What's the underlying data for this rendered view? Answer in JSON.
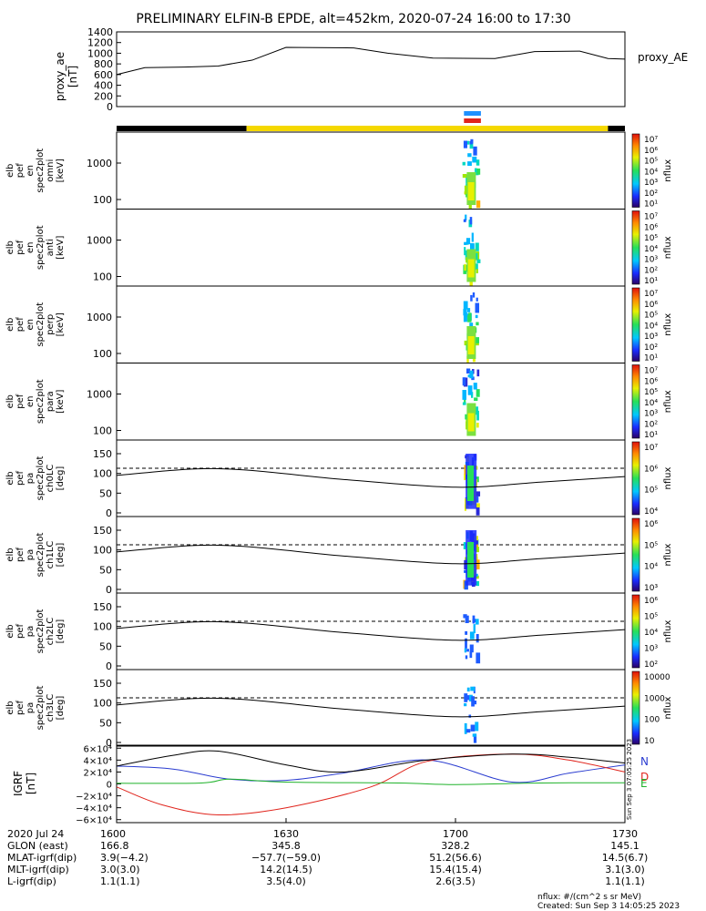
{
  "title": "PRELIMINARY ELFIN-B EPDE, alt=452km, 2020-07-24 16:00 to 17:30",
  "chart_data": {
    "type": "multi-panel time series",
    "time_range": [
      "16:00",
      "17:30"
    ],
    "ae_panel": {
      "ylabel": [
        "proxy_ae",
        "[nT]"
      ],
      "legend": "proxy_AE",
      "yticks": [
        "1400",
        "1200",
        "1000",
        "800",
        "600",
        "400",
        "200",
        "0"
      ],
      "ylim": [
        0,
        1400
      ],
      "series": [
        {
          "t": 0,
          "v": 600
        },
        {
          "t": 5,
          "v": 730
        },
        {
          "t": 12,
          "v": 740
        },
        {
          "t": 18,
          "v": 760
        },
        {
          "t": 24,
          "v": 870
        },
        {
          "t": 30,
          "v": 1110
        },
        {
          "t": 42,
          "v": 1100
        },
        {
          "t": 48,
          "v": 1000
        },
        {
          "t": 56,
          "v": 910
        },
        {
          "t": 67,
          "v": 900
        },
        {
          "t": 74,
          "v": 1030
        },
        {
          "t": 82,
          "v": 1040
        },
        {
          "t": 87,
          "v": 900
        },
        {
          "t": 90,
          "v": 890
        }
      ]
    },
    "spectra_panels": [
      {
        "labels": [
          "elb",
          "pef",
          "en",
          "spec2plot",
          "omni",
          "[keV]"
        ],
        "yticks": [
          "1000",
          "100"
        ],
        "cbar_ticks": [
          "10⁷",
          "10⁶",
          "10⁵",
          "10⁴",
          "10³",
          "10²",
          "10¹"
        ],
        "cbar_label": "nflux"
      },
      {
        "labels": [
          "elb",
          "pef",
          "en",
          "spec2plot",
          "anti",
          "[keV]"
        ],
        "yticks": [
          "1000",
          "100"
        ],
        "cbar_ticks": [
          "10⁷",
          "10⁶",
          "10⁵",
          "10⁴",
          "10³",
          "10²",
          "10¹"
        ],
        "cbar_label": "nflux"
      },
      {
        "labels": [
          "elb",
          "pef",
          "en",
          "spec2plot",
          "perp",
          "[keV]"
        ],
        "yticks": [
          "1000",
          "100"
        ],
        "cbar_ticks": [
          "10⁷",
          "10⁶",
          "10⁵",
          "10⁴",
          "10³",
          "10²",
          "10¹"
        ],
        "cbar_label": "nflux"
      },
      {
        "labels": [
          "elb",
          "pef",
          "en",
          "spec2plot",
          "para",
          "[keV]"
        ],
        "yticks": [
          "1000",
          "100"
        ],
        "cbar_ticks": [
          "10⁷",
          "10⁶",
          "10⁵",
          "10⁴",
          "10³",
          "10²",
          "10¹"
        ],
        "cbar_label": "nflux"
      }
    ],
    "pitch_panels": [
      {
        "labels": [
          "elb",
          "pef",
          "pa",
          "spec2plot",
          "ch0LC",
          "[deg]"
        ],
        "yticks": [
          "150",
          "100",
          "50",
          "0"
        ],
        "cbar_ticks": [
          "10⁷",
          "10⁶",
          "10⁵",
          "10⁴"
        ],
        "cbar_label": "nflux"
      },
      {
        "labels": [
          "elb",
          "pef",
          "pa",
          "spec2plot",
          "ch1LC",
          "[deg]"
        ],
        "yticks": [
          "150",
          "100",
          "50",
          "0"
        ],
        "cbar_ticks": [
          "10⁶",
          "10⁵",
          "10⁴",
          "10³"
        ],
        "cbar_label": "nflux"
      },
      {
        "labels": [
          "elb",
          "pef",
          "pa",
          "spec2plot",
          "ch2LC",
          "[deg]"
        ],
        "yticks": [
          "150",
          "100",
          "50",
          "0"
        ],
        "cbar_ticks": [
          "10⁶",
          "10⁵",
          "10⁴",
          "10³",
          "10²"
        ],
        "cbar_label": "nflux"
      },
      {
        "labels": [
          "elb",
          "pef",
          "pa",
          "spec2plot",
          "ch3LC",
          "[deg]"
        ],
        "yticks": [
          "150",
          "100",
          "50",
          "0"
        ],
        "cbar_ticks": [
          "10000",
          "1000",
          "100",
          "10"
        ],
        "cbar_label": "nflux"
      }
    ],
    "loss_cone_curve": [
      {
        "t": 0,
        "deg": 95
      },
      {
        "t": 18,
        "deg": 112
      },
      {
        "t": 40,
        "deg": 85
      },
      {
        "t": 60,
        "deg": 65
      },
      {
        "t": 75,
        "deg": 78
      },
      {
        "t": 90,
        "deg": 92
      }
    ],
    "loss_cone_dashed_deg": 113,
    "igrf_panel": {
      "ylabel": [
        "IGRF",
        "[nT]"
      ],
      "yticks": [
        "6×10⁴",
        "4×10⁴",
        "2×10⁴",
        "0",
        "−2×10⁴",
        "−4×10⁴",
        "−6×10⁴"
      ],
      "ylim": [
        -65000,
        65000
      ],
      "legend": [
        "N",
        "D",
        "E"
      ],
      "legend_colors": [
        "#2a3cd0",
        "#e0241c",
        "#1fb22a"
      ],
      "series": [
        {
          "name": "N",
          "color": "#2a3cd0",
          "points": [
            [
              0,
              30000
            ],
            [
              10,
              25000
            ],
            [
              20,
              8000
            ],
            [
              30,
              6000
            ],
            [
              40,
              18000
            ],
            [
              55,
              40000
            ],
            [
              70,
              3000
            ],
            [
              80,
              18000
            ],
            [
              90,
              32000
            ]
          ]
        },
        {
          "name": "D",
          "color": "#e0241c",
          "points": [
            [
              0,
              -5000
            ],
            [
              8,
              -35000
            ],
            [
              18,
              -52000
            ],
            [
              30,
              -40000
            ],
            [
              45,
              -5000
            ],
            [
              55,
              38000
            ],
            [
              70,
              50000
            ],
            [
              80,
              40000
            ],
            [
              90,
              20000
            ]
          ]
        },
        {
          "name": "E",
          "color": "#1fb22a",
          "points": [
            [
              0,
              1000
            ],
            [
              15,
              1500
            ],
            [
              20,
              8000
            ],
            [
              30,
              3000
            ],
            [
              50,
              1500
            ],
            [
              60,
              -1000
            ],
            [
              75,
              1500
            ],
            [
              90,
              2000
            ]
          ]
        },
        {
          "name": "total",
          "color": "#000000",
          "points": [
            [
              0,
              30000
            ],
            [
              10,
              48000
            ],
            [
              18,
              55000
            ],
            [
              30,
              32000
            ],
            [
              40,
              20000
            ],
            [
              55,
              40000
            ],
            [
              70,
              50000
            ],
            [
              80,
              45000
            ],
            [
              90,
              35000
            ]
          ]
        }
      ]
    },
    "overlay_bars": [
      {
        "color": "#1e90ff",
        "t_start": 61.5,
        "t_end": 64.5
      },
      {
        "color": "#e0241c",
        "t_start": 61.5,
        "t_end": 64.5
      }
    ],
    "sun_bar": [
      {
        "color": "#000000",
        "t_start": 0,
        "t_end": 23
      },
      {
        "color": "#f5d800",
        "t_start": 23,
        "t_end": 87
      },
      {
        "color": "#000000",
        "t_start": 87,
        "t_end": 90
      }
    ]
  },
  "side_stamp": "Sun Sep  3 07:05:25 2023",
  "ephemeris": {
    "row_labels": [
      "2020 Jul 24",
      "GLON (east)",
      "MLAT-igrf(dip)",
      "MLT-igrf(dip)",
      "L-igrf(dip)"
    ],
    "columns": [
      {
        "t": 0,
        "values": [
          "1600",
          "166.8",
          "3.9(−4.2)",
          "3.0(3.0)",
          "1.1(1.1)"
        ]
      },
      {
        "t": 30,
        "values": [
          "1630",
          "345.8",
          "−57.7(−59.0)",
          "14.2(14.5)",
          "3.5(4.0)"
        ]
      },
      {
        "t": 60,
        "values": [
          "1700",
          "328.2",
          "51.2(56.6)",
          "15.4(15.4)",
          "2.6(3.5)"
        ]
      },
      {
        "t": 90,
        "values": [
          "1730",
          "145.1",
          "14.5(6.7)",
          "3.1(3.0)",
          "1.1(1.1)"
        ]
      }
    ]
  },
  "footer": {
    "units": "nflux: #/(cm^2 s sr MeV)",
    "created": "Created: Sun Sep  3 14:05:25 2023"
  }
}
